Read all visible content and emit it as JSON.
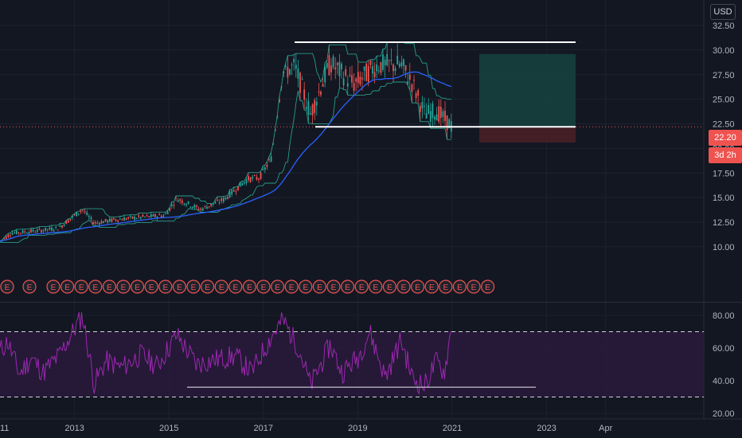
{
  "currency": "USD",
  "price_badge": "22.20",
  "countdown_badge": "3d 2h",
  "colors": {
    "bg": "#131722",
    "grid": "#1e222d",
    "up": "#26a69a",
    "down": "#ef5350",
    "ma": "#2962ff",
    "band": "#2bb39a",
    "rsi": "#9c27b0",
    "rsi_fill": "#2a1a3d",
    "level": "#ffffff",
    "earnings": "#ef5350",
    "target_zone": "#16423f",
    "stop_zone": "#4a1f26"
  },
  "earnings_marker": "E",
  "chart_data": [
    {
      "type": "candlestick",
      "y_axis_labels": [
        "32.50",
        "30.00",
        "27.50",
        "25.00",
        "22.50",
        "20.00",
        "17.50",
        "15.00",
        "12.50",
        "10.00"
      ],
      "ylim": [
        9.0,
        33.5
      ],
      "x_axis_labels": [
        "11",
        "2013",
        "2015",
        "2017",
        "2019",
        "2021",
        "2023",
        "Apr"
      ],
      "price_path": [
        [
          "2011-05",
          10.2
        ],
        [
          "2011-09",
          11.4
        ],
        [
          "2012-03",
          11.6
        ],
        [
          "2012-09",
          11.9
        ],
        [
          "2013-03",
          13.8
        ],
        [
          "2013-06",
          12.4
        ],
        [
          "2013-12",
          12.8
        ],
        [
          "2014-06",
          13.0
        ],
        [
          "2014-12",
          13.2
        ],
        [
          "2015-03",
          14.9
        ],
        [
          "2015-09",
          13.8
        ],
        [
          "2016-03",
          14.8
        ],
        [
          "2016-09",
          16.9
        ],
        [
          "2016-12",
          17.0
        ],
        [
          "2017-03",
          19.0
        ],
        [
          "2017-06",
          27.8
        ],
        [
          "2017-09",
          28.3
        ],
        [
          "2018-01",
          23.5
        ],
        [
          "2018-06",
          28.7
        ],
        [
          "2018-12",
          26.5
        ],
        [
          "2019-06",
          28.5
        ],
        [
          "2019-12",
          28.5
        ],
        [
          "2020-03",
          26.5
        ],
        [
          "2020-06",
          23.5
        ],
        [
          "2020-09",
          23.8
        ],
        [
          "2021-01",
          22.2
        ]
      ],
      "horizontal_levels": [
        {
          "name": "resistance",
          "value": 30.8
        },
        {
          "name": "support",
          "value": 22.2
        }
      ],
      "position_tool": {
        "entry": 22.2,
        "target": 29.6,
        "stop": 20.6
      },
      "last_price": 22.2
    },
    {
      "type": "line",
      "name": "RSI",
      "y_axis_labels": [
        "80.00",
        "60.00",
        "40.00",
        "20.00"
      ],
      "ylim": [
        19,
        86
      ],
      "bands": [
        70,
        30
      ],
      "support_line": 36,
      "rsi_path": [
        [
          "2011-05",
          55
        ],
        [
          "2011-08",
          64
        ],
        [
          "2011-11",
          44
        ],
        [
          "2012-02",
          54
        ],
        [
          "2012-05",
          45
        ],
        [
          "2012-09",
          55
        ],
        [
          "2013-03",
          80
        ],
        [
          "2013-06",
          38
        ],
        [
          "2013-09",
          52
        ],
        [
          "2014-01",
          48
        ],
        [
          "2014-06",
          56
        ],
        [
          "2014-10",
          49
        ],
        [
          "2015-03",
          68
        ],
        [
          "2015-08",
          50
        ],
        [
          "2016-01",
          53
        ],
        [
          "2016-06",
          55
        ],
        [
          "2016-10",
          45
        ],
        [
          "2017-03",
          67
        ],
        [
          "2017-06",
          77
        ],
        [
          "2017-10",
          60
        ],
        [
          "2018-01",
          37
        ],
        [
          "2018-06",
          62
        ],
        [
          "2018-09",
          45
        ],
        [
          "2019-01",
          54
        ],
        [
          "2019-04",
          70
        ],
        [
          "2019-08",
          42
        ],
        [
          "2019-12",
          65
        ],
        [
          "2020-03",
          41
        ],
        [
          "2020-06",
          37
        ],
        [
          "2020-09",
          52
        ],
        [
          "2020-11",
          45
        ],
        [
          "2021-01",
          75
        ],
        [
          "2021-02",
          46
        ]
      ]
    }
  ]
}
